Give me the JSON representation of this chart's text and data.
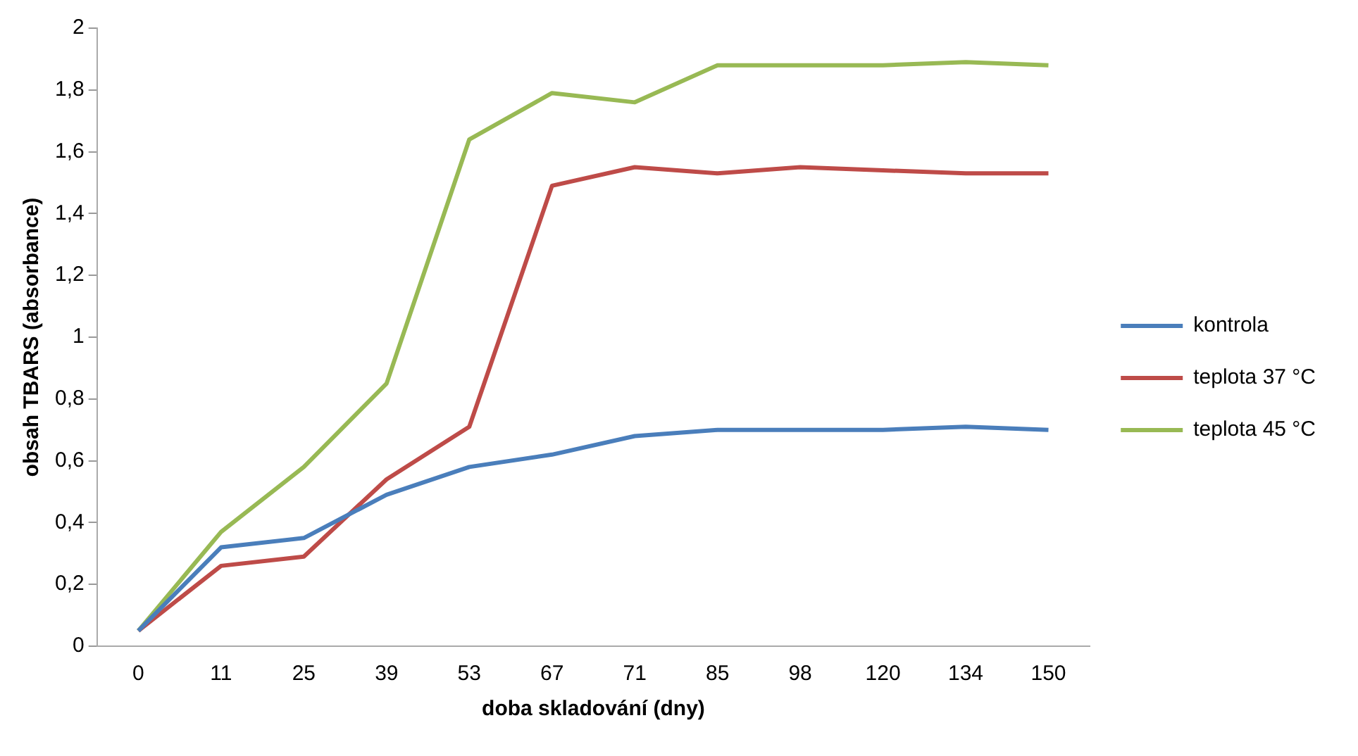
{
  "chart_data": {
    "type": "line",
    "xlabel": "doba skladování (dny)",
    "ylabel": "obsah TBARS (absorbance)",
    "categories": [
      "0",
      "11",
      "25",
      "39",
      "53",
      "67",
      "71",
      "85",
      "98",
      "120",
      "134",
      "150"
    ],
    "series": [
      {
        "name": "kontrola",
        "color": "#4a7ebb",
        "values": [
          0.05,
          0.32,
          0.35,
          0.49,
          0.58,
          0.62,
          0.68,
          0.7,
          0.7,
          0.7,
          0.71,
          0.7
        ]
      },
      {
        "name": "teplota 37 °C",
        "color": "#be4b48",
        "values": [
          0.05,
          0.26,
          0.29,
          0.54,
          0.71,
          1.49,
          1.55,
          1.53,
          1.55,
          1.54,
          1.53,
          1.53
        ]
      },
      {
        "name": "teplota 45 °C",
        "color": "#98b954",
        "values": [
          0.05,
          0.37,
          0.58,
          0.85,
          1.64,
          1.79,
          1.76,
          1.88,
          1.88,
          1.88,
          1.89,
          1.88
        ]
      }
    ],
    "ylim": [
      0,
      2
    ],
    "yticks": [
      0,
      {
        "value": 0.2,
        "label": "0,2"
      },
      {
        "value": 0.4,
        "label": "0,4"
      },
      {
        "value": 0.6,
        "label": "0,6"
      },
      {
        "value": 0.8,
        "label": "0,8"
      },
      1,
      {
        "value": 1.2,
        "label": "1,2"
      },
      {
        "value": 1.4,
        "label": "1,4"
      },
      {
        "value": 1.6,
        "label": "1,6"
      },
      {
        "value": 1.8,
        "label": "1,8"
      },
      2
    ],
    "grid": false,
    "legend": "right",
    "marker": "none",
    "line_style": "solid"
  }
}
